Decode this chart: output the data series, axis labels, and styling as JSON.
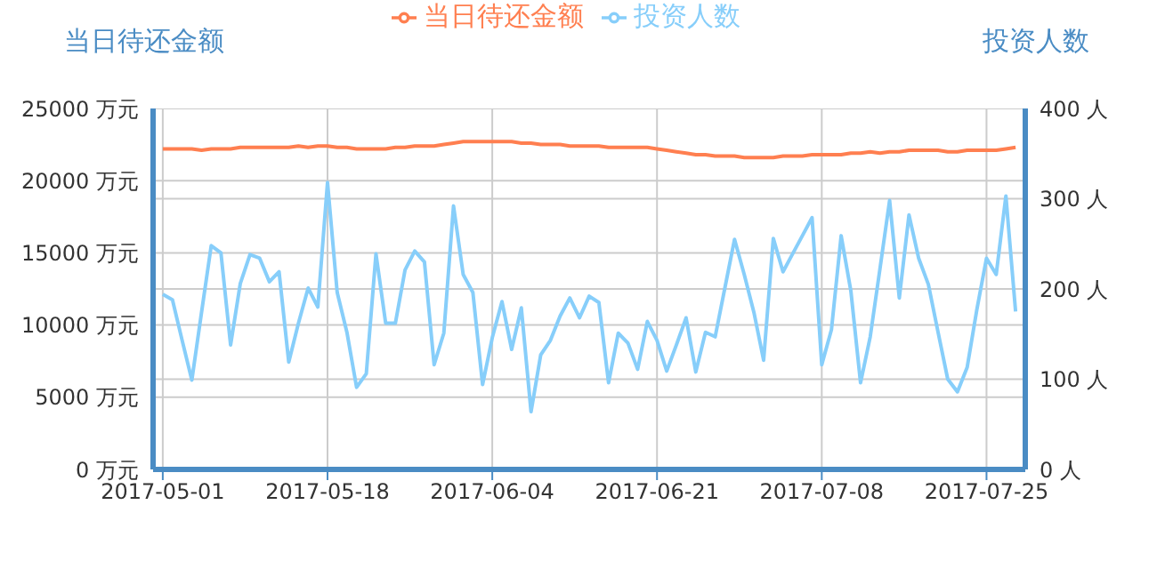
{
  "chart_data": {
    "type": "line",
    "ylabel": "当日待还金额",
    "y2label": "投资人数",
    "x": [
      "2017-05-01",
      "2017-05-02",
      "2017-05-03",
      "2017-05-04",
      "2017-05-05",
      "2017-05-06",
      "2017-05-07",
      "2017-05-08",
      "2017-05-09",
      "2017-05-10",
      "2017-05-11",
      "2017-05-12",
      "2017-05-13",
      "2017-05-14",
      "2017-05-15",
      "2017-05-16",
      "2017-05-17",
      "2017-05-18",
      "2017-05-19",
      "2017-05-20",
      "2017-05-21",
      "2017-05-22",
      "2017-05-23",
      "2017-05-24",
      "2017-05-25",
      "2017-05-26",
      "2017-05-27",
      "2017-05-28",
      "2017-05-29",
      "2017-05-30",
      "2017-05-31",
      "2017-06-01",
      "2017-06-02",
      "2017-06-03",
      "2017-06-04",
      "2017-06-05",
      "2017-06-06",
      "2017-06-07",
      "2017-06-08",
      "2017-06-09",
      "2017-06-10",
      "2017-06-11",
      "2017-06-12",
      "2017-06-13",
      "2017-06-14",
      "2017-06-15",
      "2017-06-16",
      "2017-06-17",
      "2017-06-18",
      "2017-06-19",
      "2017-06-20",
      "2017-06-21",
      "2017-06-22",
      "2017-06-23",
      "2017-06-24",
      "2017-06-25",
      "2017-06-26",
      "2017-06-27",
      "2017-06-28",
      "2017-06-29",
      "2017-06-30",
      "2017-07-01",
      "2017-07-02",
      "2017-07-03",
      "2017-07-04",
      "2017-07-05",
      "2017-07-06",
      "2017-07-07",
      "2017-07-08",
      "2017-07-09",
      "2017-07-10",
      "2017-07-11",
      "2017-07-12",
      "2017-07-13",
      "2017-07-14",
      "2017-07-15",
      "2017-07-16",
      "2017-07-17",
      "2017-07-18",
      "2017-07-19",
      "2017-07-20",
      "2017-07-21",
      "2017-07-22",
      "2017-07-23",
      "2017-07-24",
      "2017-07-25",
      "2017-07-26",
      "2017-07-27",
      "2017-07-28"
    ],
    "series": [
      {
        "name": "当日待还金额",
        "color": "#ff7f50",
        "values": [
          22200,
          22200,
          22200,
          22200,
          22100,
          22200,
          22200,
          22200,
          22300,
          22300,
          22300,
          22300,
          22300,
          22300,
          22400,
          22300,
          22400,
          22400,
          22300,
          22300,
          22200,
          22200,
          22200,
          22200,
          22300,
          22300,
          22400,
          22400,
          22400,
          22500,
          22600,
          22700,
          22700,
          22700,
          22700,
          22700,
          22700,
          22600,
          22600,
          22500,
          22500,
          22500,
          22400,
          22400,
          22400,
          22400,
          22300,
          22300,
          22300,
          22300,
          22300,
          22200,
          22100,
          22000,
          21900,
          21800,
          21800,
          21700,
          21700,
          21700,
          21600,
          21600,
          21600,
          21600,
          21700,
          21700,
          21700,
          21800,
          21800,
          21800,
          21800,
          21900,
          21900,
          22000,
          21900,
          22000,
          22000,
          22100,
          22100,
          22100,
          22100,
          22000,
          22000,
          22100,
          22100,
          22100,
          22100,
          22200,
          22300
        ]
      },
      {
        "name": "投资人数",
        "color": "#87cefa",
        "axis": "y2",
        "values": [
          194,
          188,
          143,
          99,
          174,
          248,
          240,
          138,
          206,
          238,
          234,
          208,
          219,
          119,
          162,
          201,
          180,
          318,
          196,
          152,
          91,
          106,
          239,
          162,
          162,
          221,
          242,
          230,
          116,
          151,
          292,
          216,
          196,
          94,
          146,
          186,
          133,
          179,
          64,
          127,
          143,
          170,
          190,
          168,
          192,
          185,
          96,
          151,
          140,
          111,
          164,
          143,
          109,
          138,
          168,
          108,
          152,
          147,
          201,
          255,
          216,
          174,
          121,
          256,
          219,
          239,
          259,
          279,
          116,
          155,
          259,
          198,
          96,
          147,
          222,
          298,
          190,
          282,
          234,
          205,
          152,
          100,
          86,
          113,
          177,
          234,
          216,
          303,
          175
        ]
      }
    ],
    "xlim": [
      "2017-04-30",
      "2017-07-29"
    ],
    "xticks": [
      "2017-05-01",
      "2017-05-18",
      "2017-06-04",
      "2017-06-21",
      "2017-07-08",
      "2017-07-25"
    ],
    "ylim": [
      0,
      25000
    ],
    "yticks": [
      {
        "value": 0,
        "label": "0 万元"
      },
      {
        "value": 5000,
        "label": "5000 万元"
      },
      {
        "value": 10000,
        "label": "10000 万元"
      },
      {
        "value": 15000,
        "label": "15000 万元"
      },
      {
        "value": 20000,
        "label": "20000 万元"
      },
      {
        "value": 25000,
        "label": "25000 万元"
      }
    ],
    "y2lim": [
      0,
      400
    ],
    "y2ticks": [
      {
        "value": 0,
        "label": "0 人"
      },
      {
        "value": 100,
        "label": "100 人"
      },
      {
        "value": 200,
        "label": "200 人"
      },
      {
        "value": 300,
        "label": "300 人"
      },
      {
        "value": 400,
        "label": "400 人"
      }
    ],
    "grid": true,
    "legend": "top",
    "line_style": "solid"
  }
}
